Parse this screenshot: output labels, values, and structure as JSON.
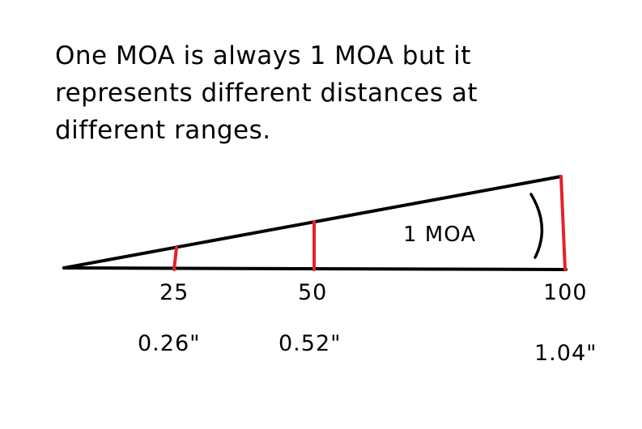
{
  "caption": {
    "lines": [
      "One MOA is always 1 MOA but it",
      "represents different distances at",
      "different ranges."
    ]
  },
  "angle_label": "1 MOA",
  "ranges": [
    {
      "range": "25",
      "size": "0.26\""
    },
    {
      "range": "50",
      "size": "0.52\""
    },
    {
      "range": "100",
      "size": "1.04\""
    }
  ],
  "colors": {
    "lines": "#000000",
    "markers": "#e8202a",
    "background": "#ffffff"
  }
}
